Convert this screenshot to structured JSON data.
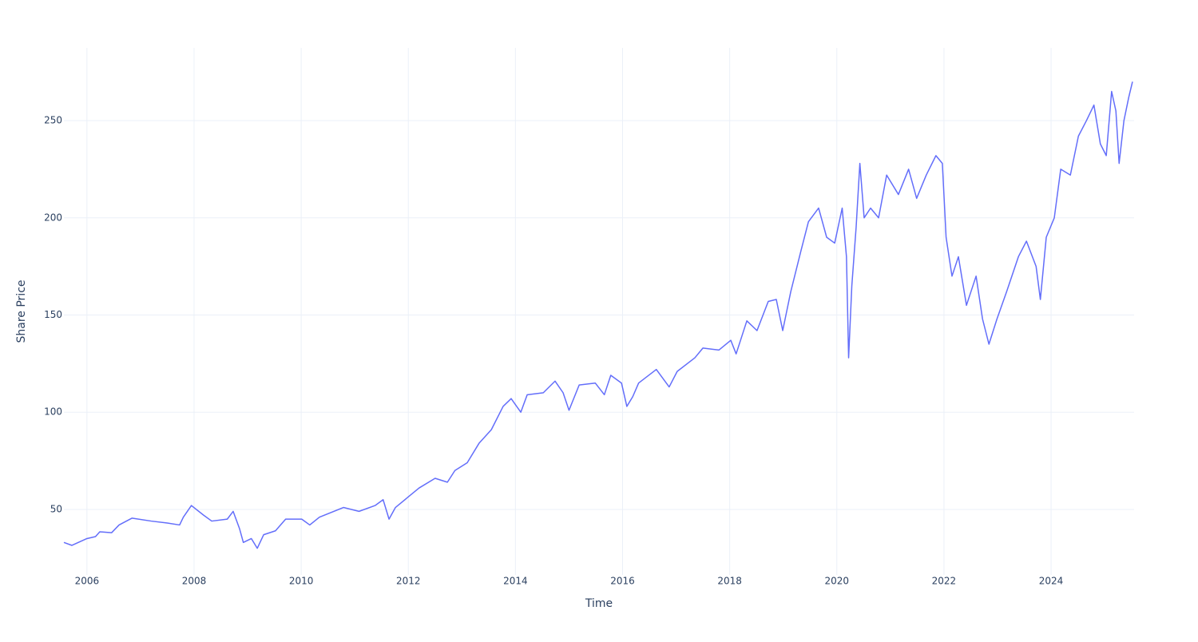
{
  "chart_data": {
    "type": "line",
    "x_label": "Time",
    "y_label": "Share Price",
    "x": [
      2005.57,
      2005.72,
      2006.0,
      2006.16,
      2006.24,
      2006.46,
      2006.6,
      2006.84,
      2007.2,
      2007.5,
      2007.73,
      2007.8,
      2007.95,
      2008.18,
      2008.33,
      2008.62,
      2008.73,
      2008.85,
      2008.92,
      2009.07,
      2009.18,
      2009.3,
      2009.52,
      2009.71,
      2010.01,
      2010.16,
      2010.34,
      2010.79,
      2011.08,
      2011.38,
      2011.53,
      2011.64,
      2011.76,
      2011.98,
      2012.2,
      2012.5,
      2012.73,
      2012.87,
      2013.1,
      2013.32,
      2013.55,
      2013.77,
      2013.92,
      2014.1,
      2014.22,
      2014.52,
      2014.74,
      2014.89,
      2015.0,
      2015.19,
      2015.49,
      2015.66,
      2015.78,
      2015.98,
      2016.08,
      2016.19,
      2016.3,
      2016.63,
      2016.87,
      2017.02,
      2017.35,
      2017.5,
      2017.8,
      2018.02,
      2018.12,
      2018.32,
      2018.51,
      2018.72,
      2018.87,
      2018.99,
      2019.14,
      2019.33,
      2019.47,
      2019.66,
      2019.81,
      2019.96,
      2020.1,
      2020.18,
      2020.22,
      2020.28,
      2020.36,
      2020.43,
      2020.51,
      2020.63,
      2020.78,
      2020.93,
      2021.15,
      2021.34,
      2021.49,
      2021.67,
      2021.85,
      2021.97,
      2022.04,
      2022.15,
      2022.27,
      2022.42,
      2022.6,
      2022.72,
      2022.84,
      2022.99,
      2023.17,
      2023.39,
      2023.54,
      2023.72,
      2023.8,
      2023.91,
      2024.06,
      2024.18,
      2024.36,
      2024.51,
      2024.66,
      2024.8,
      2024.92,
      2025.03,
      2025.13,
      2025.21,
      2025.27,
      2025.36,
      2025.45,
      2025.52
    ],
    "series": [
      {
        "name": "Share Price",
        "color": "#636efa",
        "values": [
          33,
          31.5,
          35,
          36,
          38.5,
          38,
          42,
          45.5,
          44,
          43,
          42,
          46,
          52,
          47,
          44,
          45,
          49,
          40,
          33,
          35,
          30,
          37,
          39,
          45,
          45,
          42,
          46,
          51,
          49,
          52,
          55,
          45,
          51,
          56,
          61,
          66,
          64,
          70,
          74,
          84,
          91,
          103,
          107,
          100,
          109,
          110,
          116,
          110,
          101,
          114,
          115,
          109,
          119,
          115,
          103,
          108,
          115,
          122,
          113,
          121,
          128,
          133,
          132,
          137,
          130,
          147,
          142,
          157,
          158,
          142,
          162,
          183,
          198,
          205,
          190,
          187,
          205,
          180,
          128,
          165,
          195,
          228,
          200,
          205,
          200,
          222,
          212,
          225,
          210,
          222,
          232,
          228,
          190,
          170,
          180,
          155,
          170,
          148,
          135,
          148,
          162,
          180,
          188,
          175,
          158,
          190,
          200,
          225,
          222,
          242,
          250,
          258,
          238,
          232,
          265,
          255,
          228,
          250,
          262,
          270
        ]
      }
    ],
    "xlim": [
      2005.57,
      2025.55
    ],
    "xticks": [
      2006,
      2008,
      2010,
      2012,
      2014,
      2016,
      2018,
      2020,
      2022,
      2024
    ],
    "ylim": [
      16.3,
      287.4
    ],
    "yticks": [
      50,
      100,
      150,
      200,
      250
    ],
    "grid": true
  }
}
